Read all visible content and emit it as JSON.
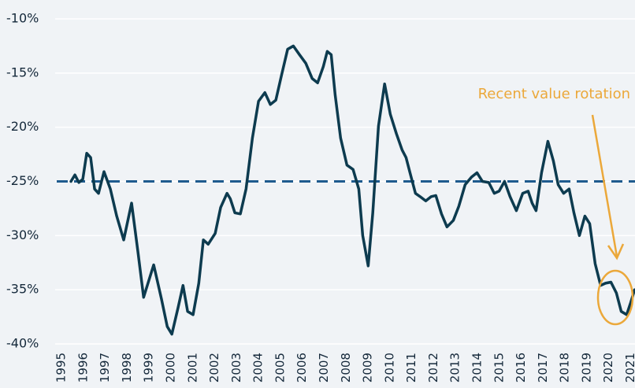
{
  "chart_data": {
    "type": "line",
    "annotation": "Recent value rotation",
    "x": [
      1995.43,
      1995.61,
      1995.79,
      1995.97,
      1996.15,
      1996.33,
      1996.51,
      1996.69,
      1996.94,
      1997.23,
      1997.52,
      1997.84,
      1998.2,
      1998.49,
      1998.75,
      1999.21,
      1999.57,
      1999.83,
      2000.04,
      2000.33,
      2000.55,
      2000.76,
      2001.01,
      2001.27,
      2001.48,
      2001.7,
      2002.02,
      2002.27,
      2002.56,
      2002.71,
      2002.92,
      2003.17,
      2003.43,
      2003.72,
      2004.0,
      2004.29,
      2004.54,
      2004.79,
      2005.05,
      2005.33,
      2005.59,
      2005.87,
      2006.16,
      2006.45,
      2006.7,
      2006.96,
      2007.14,
      2007.32,
      2007.5,
      2007.75,
      2008.04,
      2008.32,
      2008.58,
      2008.76,
      2009.01,
      2009.22,
      2009.48,
      2009.76,
      2010.02,
      2010.3,
      2010.56,
      2010.74,
      2010.92,
      2011.17,
      2011.38,
      2011.64,
      2011.89,
      2012.1,
      2012.36,
      2012.61,
      2012.9,
      2013.15,
      2013.44,
      2013.73,
      2013.98,
      2014.23,
      2014.52,
      2014.77,
      2014.99,
      2015.24,
      2015.49,
      2015.78,
      2016.07,
      2016.32,
      2016.5,
      2016.68,
      2016.93,
      2017.22,
      2017.47,
      2017.69,
      2017.94,
      2018.19,
      2018.41,
      2018.66,
      2018.91,
      2019.13,
      2019.38,
      2019.63,
      2019.85,
      2020.1,
      2020.35,
      2020.57,
      2020.82,
      2021.0,
      2021.18
    ],
    "series": [
      {
        "name": null,
        "color": "#0d3b4f",
        "values": [
          -25.0,
          -24.4,
          -25.1,
          -24.8,
          -22.4,
          -22.8,
          -25.7,
          -26.1,
          -24.1,
          -25.7,
          -28.2,
          -30.4,
          -27.0,
          -31.5,
          -35.7,
          -32.7,
          -35.9,
          -38.4,
          -39.1,
          -36.6,
          -34.6,
          -37.0,
          -37.3,
          -34.4,
          -30.4,
          -30.8,
          -29.8,
          -27.4,
          -26.1,
          -26.6,
          -27.9,
          -28.0,
          -25.7,
          -21.0,
          -17.6,
          -16.8,
          -17.9,
          -17.5,
          -15.2,
          -12.8,
          -12.5,
          -13.3,
          -14.1,
          -15.5,
          -15.9,
          -14.4,
          -13.0,
          -13.3,
          -17.0,
          -21.0,
          -23.5,
          -23.9,
          -25.7,
          -30.0,
          -32.8,
          -27.9,
          -19.9,
          -16.0,
          -18.8,
          -20.6,
          -22.1,
          -22.8,
          -24.2,
          -26.1,
          -26.4,
          -26.8,
          -26.4,
          -26.3,
          -28.0,
          -29.2,
          -28.6,
          -27.3,
          -25.3,
          -24.6,
          -24.2,
          -25.0,
          -25.1,
          -26.1,
          -25.9,
          -25.0,
          -26.4,
          -27.7,
          -26.1,
          -25.9,
          -27.0,
          -27.7,
          -24.2,
          -21.3,
          -23.1,
          -25.3,
          -26.1,
          -25.7,
          -27.9,
          -30.0,
          -28.2,
          -28.9,
          -32.6,
          -34.6,
          -34.4,
          -34.3,
          -35.3,
          -37.0,
          -37.3,
          -36.2,
          -35.0
        ]
      }
    ],
    "reference_line": -25,
    "xlim": [
      1994.6,
      2021.2
    ],
    "xticks": [
      1995,
      1996,
      1997,
      1998,
      1999,
      2000,
      2001,
      2002,
      2003,
      2004,
      2005,
      2006,
      2007,
      2008,
      2009,
      2010,
      2011,
      2012,
      2013,
      2014,
      2015,
      2016,
      2017,
      2018,
      2019,
      2020,
      2021
    ],
    "ylim": [
      -40.8,
      -9.2
    ],
    "yticks": [
      {
        "value": -10,
        "label": "-10%"
      },
      {
        "value": -15,
        "label": "-15%"
      },
      {
        "value": -20,
        "label": "-20%"
      },
      {
        "value": -25,
        "label": "-25%"
      },
      {
        "value": -30,
        "label": "-30%"
      },
      {
        "value": -35,
        "label": "-35%"
      },
      {
        "value": -40,
        "label": "-40%"
      }
    ],
    "grid": true
  }
}
